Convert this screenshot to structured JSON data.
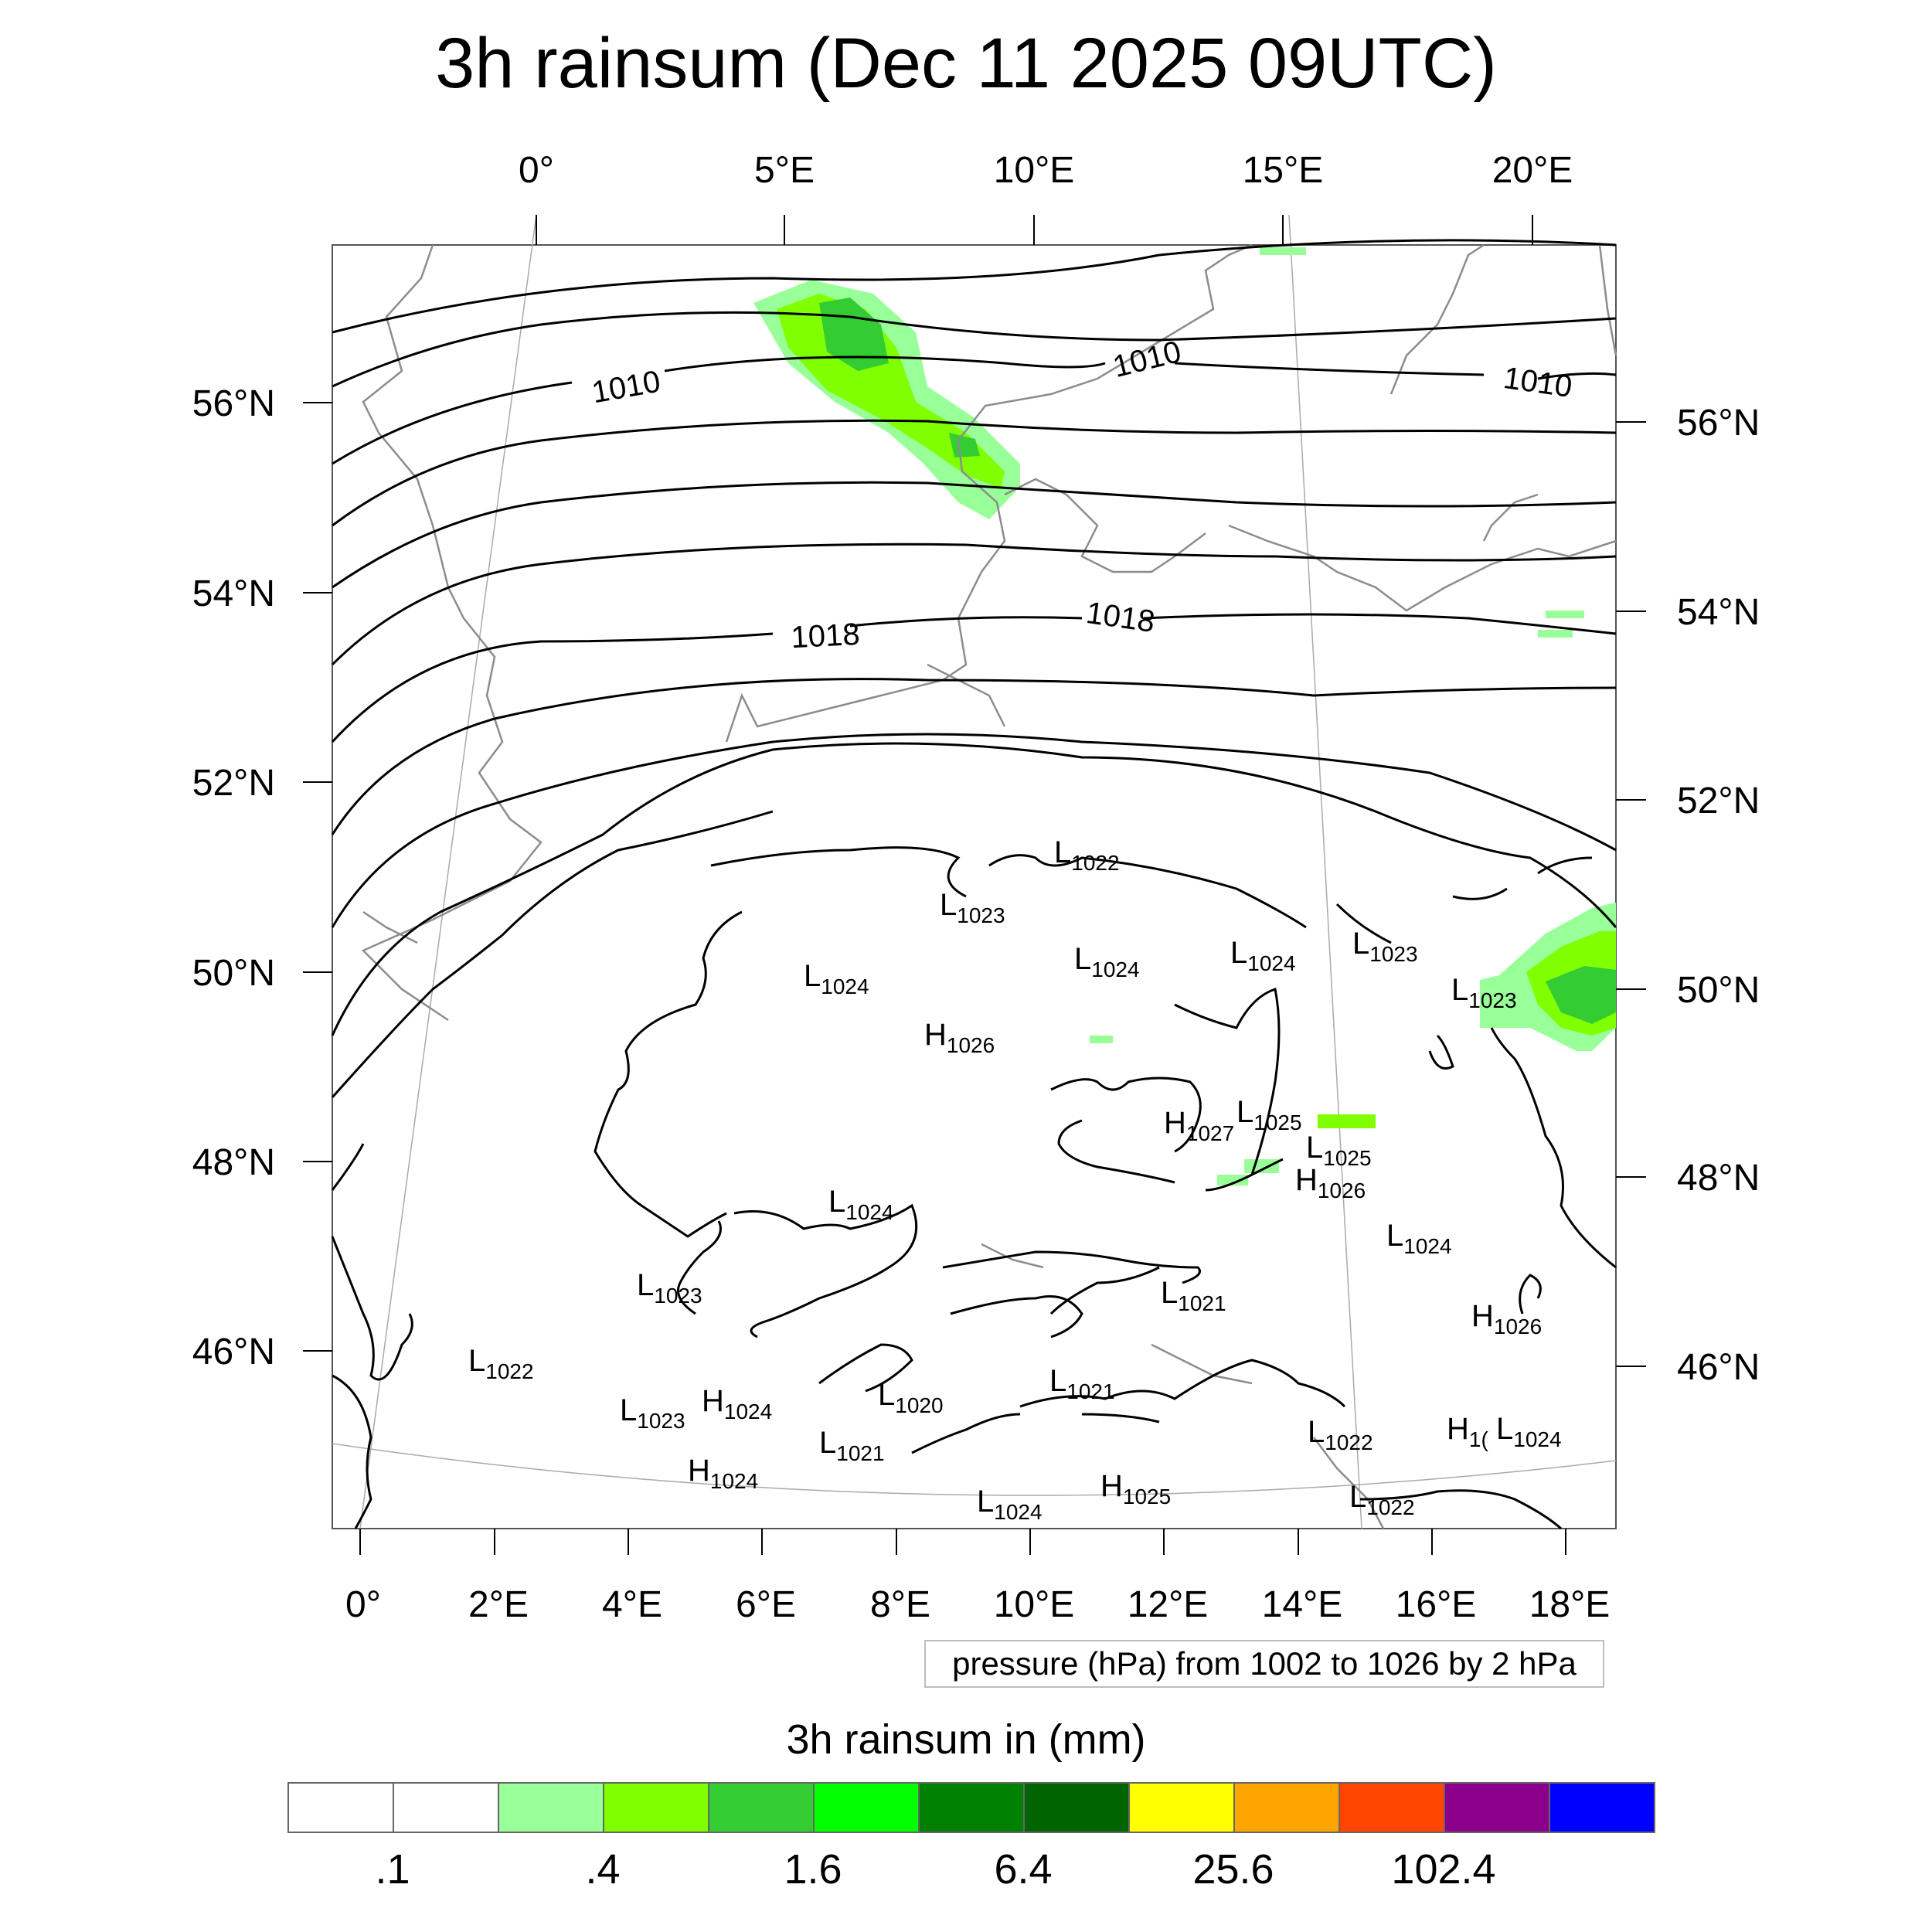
{
  "title": "3h rainsum (Dec 11 2025 09UTC)",
  "top_lon_labels": [
    "0°",
    "5°E",
    "10°E",
    "15°E",
    "20°E"
  ],
  "bottom_lon_labels": [
    "0°",
    "2°E",
    "4°E",
    "6°E",
    "8°E",
    "10°E",
    "12°E",
    "14°E",
    "16°E",
    "18°E"
  ],
  "left_lat_labels": [
    "56°N",
    "54°N",
    "52°N",
    "50°N",
    "48°N",
    "46°N"
  ],
  "right_lat_labels": [
    "56°N",
    "54°N",
    "52°N",
    "50°N",
    "48°N",
    "46°N"
  ],
  "isobar_labels": [
    "1010",
    "1010",
    "1010",
    "1018",
    "1018"
  ],
  "pressure_systems": [
    {
      "type": "L",
      "value": "1022"
    },
    {
      "type": "L",
      "value": "1023"
    },
    {
      "type": "L",
      "value": "1024"
    },
    {
      "type": "L",
      "value": "1024"
    },
    {
      "type": "L",
      "value": "1024"
    },
    {
      "type": "L",
      "value": "1023"
    },
    {
      "type": "L",
      "value": "1023"
    },
    {
      "type": "H",
      "value": "1026"
    },
    {
      "type": "H",
      "value": "1027"
    },
    {
      "type": "L",
      "value": "1025"
    },
    {
      "type": "L",
      "value": "1025"
    },
    {
      "type": "H",
      "value": "1026"
    },
    {
      "type": "L",
      "value": "1024"
    },
    {
      "type": "L",
      "value": "1024"
    },
    {
      "type": "L",
      "value": "1023"
    },
    {
      "type": "L",
      "value": "1021"
    },
    {
      "type": "H",
      "value": "1026"
    },
    {
      "type": "L",
      "value": "1022"
    },
    {
      "type": "L",
      "value": "1021"
    },
    {
      "type": "L",
      "value": "1023"
    },
    {
      "type": "H",
      "value": "1024"
    },
    {
      "type": "L",
      "value": "1020"
    },
    {
      "type": "L",
      "value": "1021"
    },
    {
      "type": "H",
      "value": "1024"
    },
    {
      "type": "L",
      "value": "1024"
    },
    {
      "type": "H",
      "value": "1025"
    },
    {
      "type": "L",
      "value": "1022"
    },
    {
      "type": "L",
      "value": "1022"
    },
    {
      "type": "H",
      "value": "1("
    },
    {
      "type": "L",
      "value": "1024"
    }
  ],
  "pressure_note": "pressure (hPa) from 1002 to 1026 by 2 hPa",
  "colorbar": {
    "title": "3h rainsum in (mm)",
    "colors": [
      "#ffffff",
      "#ffffff",
      "#99ff99",
      "#80ff00",
      "#33cc33",
      "#00ff00",
      "#008000",
      "#006400",
      "#ffff00",
      "#ffa500",
      "#ff4500",
      "#8b008b",
      "#0000ff"
    ],
    "labels": [
      ".1",
      ".4",
      "1.6",
      "6.4",
      "25.6",
      "102.4"
    ]
  }
}
